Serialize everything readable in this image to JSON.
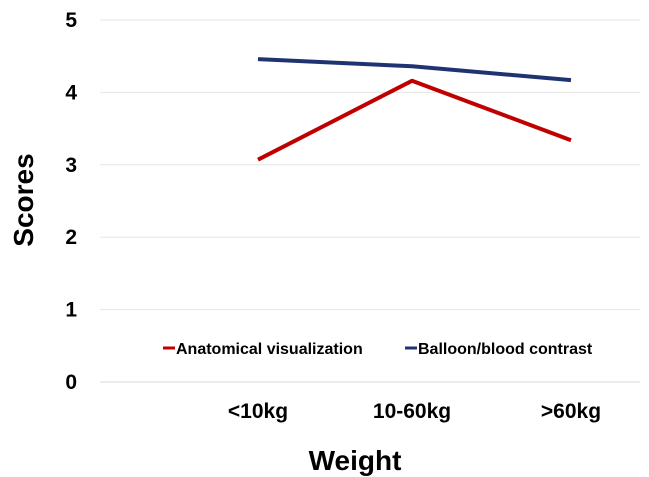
{
  "chart_data": {
    "type": "line",
    "title": "",
    "xlabel": "Weight",
    "ylabel": "Scores",
    "categories": [
      "<10kg",
      "10-60kg",
      ">60kg"
    ],
    "ylim": [
      0,
      5
    ],
    "yticks": [
      "0",
      "1",
      "2",
      "3",
      "4",
      "5"
    ],
    "grid": true,
    "legend_position": "bottom-center",
    "series": [
      {
        "name": "Anatomical visualization",
        "color": "#c00000",
        "values": [
          3.07,
          4.16,
          3.34
        ]
      },
      {
        "name": "Balloon/blood contrast",
        "color": "#1f3370",
        "values": [
          4.46,
          4.36,
          4.17
        ]
      }
    ]
  }
}
